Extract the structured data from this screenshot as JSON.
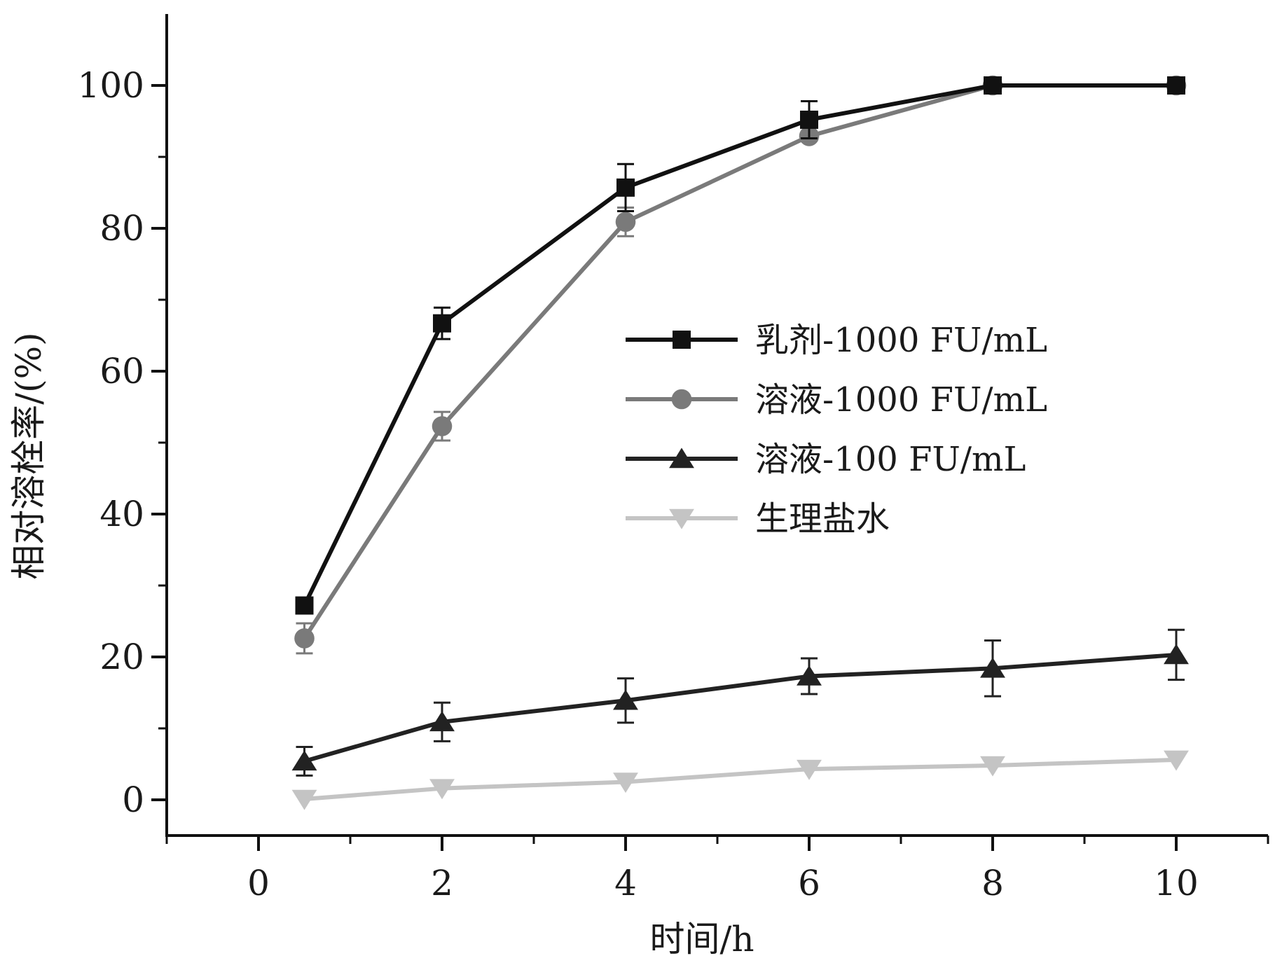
{
  "chart_data": {
    "type": "line",
    "title": "",
    "xlabel": "时间/h",
    "ylabel": "相对溶栓率/(%)",
    "xlim": [
      -1,
      11
    ],
    "ylim": [
      -5,
      110
    ],
    "x_ticks": [
      "0",
      "2",
      "4",
      "6",
      "8",
      "10"
    ],
    "x_tick_values": [
      0,
      2,
      4,
      6,
      8,
      10
    ],
    "y_ticks": [
      "0",
      "20",
      "40",
      "60",
      "80",
      "100"
    ],
    "y_tick_values": [
      0,
      20,
      40,
      60,
      80,
      100
    ],
    "grid": false,
    "legend_position": "center-right",
    "x": [
      0.5,
      2,
      4,
      6,
      8,
      10
    ],
    "series": [
      {
        "name": "乳剂-1000 FU/mL",
        "color": "#111111",
        "marker": "square",
        "values": [
          27.2,
          66.7,
          85.7,
          95.2,
          100,
          100
        ],
        "errors": [
          0,
          2.2,
          3.3,
          2.6,
          0,
          0
        ]
      },
      {
        "name": "溶液-1000 FU/mL",
        "color": "#7a7a7a",
        "marker": "circle",
        "values": [
          22.6,
          52.3,
          80.9,
          92.9,
          100,
          100
        ],
        "errors": [
          2.1,
          2.0,
          2.0,
          0,
          0,
          0
        ]
      },
      {
        "name": "溶液-100 FU/mL",
        "color": "#222222",
        "marker": "triangle-up",
        "values": [
          5.4,
          10.9,
          13.9,
          17.3,
          18.4,
          20.3
        ],
        "errors": [
          2.0,
          2.7,
          3.1,
          2.5,
          3.9,
          3.5
        ]
      },
      {
        "name": "生理盐水",
        "color": "#c4c4c4",
        "marker": "triangle-down",
        "values": [
          0.1,
          1.6,
          2.5,
          4.3,
          4.8,
          5.6
        ],
        "errors": [
          0,
          0,
          0,
          0,
          0,
          0
        ]
      }
    ]
  }
}
